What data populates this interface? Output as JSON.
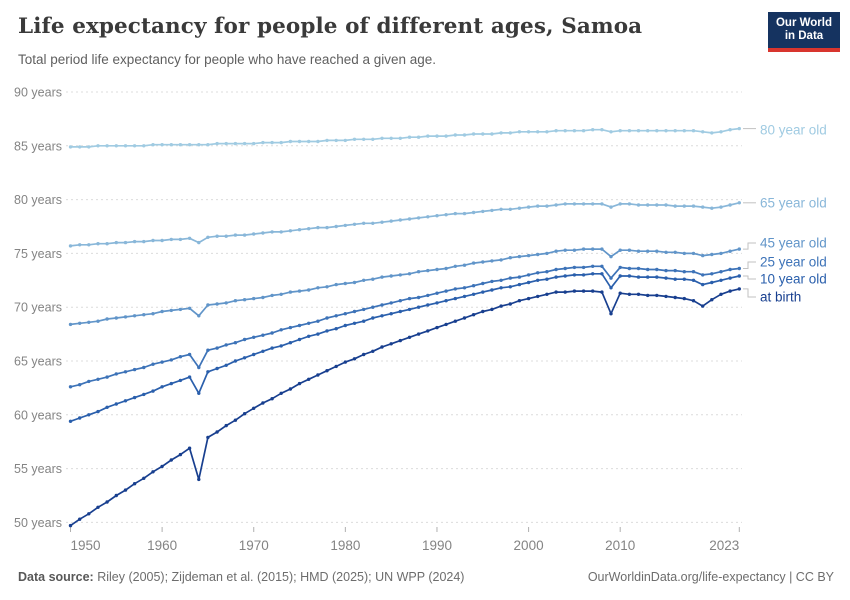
{
  "header": {
    "title": "Life expectancy for people of different ages, Samoa",
    "subtitle": "Total period life expectancy for people who have reached a given age.",
    "logo": {
      "line1": "Our World",
      "line2": "in Data",
      "bg": "#153360",
      "accent": "#d8352e"
    }
  },
  "footer": {
    "source_label": "Data source:",
    "source_text": " Riley (2005); Zijdeman et al. (2015); HMD (2025); UN WPP (2024)",
    "credit": "OurWorldinData.org/life-expectancy | CC BY"
  },
  "colors": {
    "grid": "#dcdcdc",
    "axis_text": "#848484",
    "tick": "#b0b0b0",
    "connector": "#c2c2c2",
    "title": "#3a3a3a",
    "subtitle": "#5f5f5f"
  },
  "chart_data": {
    "type": "line",
    "title": "Life expectancy for people of different ages, Samoa",
    "subtitle": "Total period life expectancy for people who have reached a given age.",
    "xlabel": "",
    "ylabel": "",
    "x": {
      "start": 1950,
      "end": 2023,
      "interval": 1
    },
    "xlim": [
      1950,
      2023
    ],
    "ylim": [
      50,
      90
    ],
    "grid": "horizontal-dashed",
    "legend_position": "right",
    "markers": "circle-every-year",
    "y_axis": {
      "ticks": [
        {
          "v": 50,
          "label": "50 years"
        },
        {
          "v": 55,
          "label": "55 years"
        },
        {
          "v": 60,
          "label": "60 years"
        },
        {
          "v": 65,
          "label": "65 years"
        },
        {
          "v": 70,
          "label": "70 years"
        },
        {
          "v": 75,
          "label": "75 years"
        },
        {
          "v": 80,
          "label": "80 years"
        },
        {
          "v": 85,
          "label": "85 years"
        },
        {
          "v": 90,
          "label": "90 years"
        }
      ]
    },
    "x_axis": {
      "ticks": [
        {
          "v": 1950,
          "label": "1950",
          "anchor": "start"
        },
        {
          "v": 1960,
          "label": "1960",
          "anchor": "middle"
        },
        {
          "v": 1970,
          "label": "1970",
          "anchor": "middle"
        },
        {
          "v": 1980,
          "label": "1980",
          "anchor": "middle"
        },
        {
          "v": 1990,
          "label": "1990",
          "anchor": "middle"
        },
        {
          "v": 2000,
          "label": "2000",
          "anchor": "middle"
        },
        {
          "v": 2010,
          "label": "2010",
          "anchor": "middle"
        },
        {
          "v": 2023,
          "label": "2023",
          "anchor": "end"
        }
      ]
    },
    "series": [
      {
        "id": "age-80",
        "name": "80 year old",
        "color": "#a0cbe2",
        "values": [
          84.9,
          84.9,
          84.9,
          85.0,
          85.0,
          85.0,
          85.0,
          85.0,
          85.0,
          85.1,
          85.1,
          85.1,
          85.1,
          85.1,
          85.1,
          85.1,
          85.2,
          85.2,
          85.2,
          85.2,
          85.2,
          85.3,
          85.3,
          85.3,
          85.4,
          85.4,
          85.4,
          85.4,
          85.5,
          85.5,
          85.5,
          85.6,
          85.6,
          85.6,
          85.7,
          85.7,
          85.7,
          85.8,
          85.8,
          85.9,
          85.9,
          85.9,
          86.0,
          86.0,
          86.1,
          86.1,
          86.1,
          86.2,
          86.2,
          86.3,
          86.3,
          86.3,
          86.3,
          86.4,
          86.4,
          86.4,
          86.4,
          86.5,
          86.5,
          86.3,
          86.4,
          86.4,
          86.4,
          86.4,
          86.4,
          86.4,
          86.4,
          86.4,
          86.4,
          86.3,
          86.2,
          86.3,
          86.5,
          86.6
        ]
      },
      {
        "id": "age-65",
        "name": "65 year old",
        "color": "#89b7d9",
        "values": [
          75.7,
          75.8,
          75.8,
          75.9,
          75.9,
          76.0,
          76.0,
          76.1,
          76.1,
          76.2,
          76.2,
          76.3,
          76.3,
          76.4,
          76.0,
          76.5,
          76.6,
          76.6,
          76.7,
          76.7,
          76.8,
          76.9,
          77.0,
          77.0,
          77.1,
          77.2,
          77.3,
          77.4,
          77.4,
          77.5,
          77.6,
          77.7,
          77.8,
          77.8,
          77.9,
          78.0,
          78.1,
          78.2,
          78.3,
          78.4,
          78.5,
          78.6,
          78.7,
          78.7,
          78.8,
          78.9,
          79.0,
          79.1,
          79.1,
          79.2,
          79.3,
          79.4,
          79.4,
          79.5,
          79.6,
          79.6,
          79.6,
          79.6,
          79.6,
          79.3,
          79.6,
          79.6,
          79.5,
          79.5,
          79.5,
          79.5,
          79.4,
          79.4,
          79.4,
          79.3,
          79.2,
          79.3,
          79.5,
          79.7
        ]
      },
      {
        "id": "age-45",
        "name": "45 year old",
        "color": "#6195c9",
        "values": [
          68.4,
          68.5,
          68.6,
          68.7,
          68.9,
          69.0,
          69.1,
          69.2,
          69.3,
          69.4,
          69.6,
          69.7,
          69.8,
          69.9,
          69.2,
          70.2,
          70.3,
          70.4,
          70.6,
          70.7,
          70.8,
          70.9,
          71.1,
          71.2,
          71.4,
          71.5,
          71.6,
          71.8,
          71.9,
          72.1,
          72.2,
          72.3,
          72.5,
          72.6,
          72.8,
          72.9,
          73.0,
          73.1,
          73.3,
          73.4,
          73.5,
          73.6,
          73.8,
          73.9,
          74.1,
          74.2,
          74.3,
          74.4,
          74.6,
          74.7,
          74.8,
          74.9,
          75.0,
          75.2,
          75.3,
          75.3,
          75.4,
          75.4,
          75.4,
          74.7,
          75.3,
          75.3,
          75.2,
          75.2,
          75.2,
          75.1,
          75.1,
          75.0,
          75.0,
          74.8,
          74.9,
          75.0,
          75.2,
          75.4
        ]
      },
      {
        "id": "age-25",
        "name": "25 year old",
        "color": "#3d73b8",
        "values": [
          62.6,
          62.8,
          63.1,
          63.3,
          63.5,
          63.8,
          64.0,
          64.2,
          64.4,
          64.7,
          64.9,
          65.1,
          65.4,
          65.6,
          64.4,
          66.0,
          66.2,
          66.5,
          66.7,
          67.0,
          67.2,
          67.4,
          67.6,
          67.9,
          68.1,
          68.3,
          68.5,
          68.7,
          69.0,
          69.2,
          69.4,
          69.6,
          69.8,
          70.0,
          70.2,
          70.4,
          70.6,
          70.8,
          70.9,
          71.1,
          71.3,
          71.5,
          71.7,
          71.8,
          72.0,
          72.2,
          72.4,
          72.5,
          72.7,
          72.8,
          73.0,
          73.2,
          73.3,
          73.5,
          73.6,
          73.7,
          73.7,
          73.8,
          73.8,
          72.7,
          73.7,
          73.6,
          73.6,
          73.5,
          73.5,
          73.4,
          73.4,
          73.3,
          73.3,
          73.0,
          73.1,
          73.3,
          73.5,
          73.6
        ]
      },
      {
        "id": "age-10",
        "name": "10 year old",
        "color": "#2a5fac",
        "values": [
          59.4,
          59.7,
          60.0,
          60.3,
          60.7,
          61.0,
          61.3,
          61.6,
          61.9,
          62.2,
          62.6,
          62.9,
          63.2,
          63.5,
          62.0,
          64.0,
          64.3,
          64.6,
          65.0,
          65.3,
          65.6,
          65.9,
          66.2,
          66.4,
          66.7,
          67.0,
          67.3,
          67.5,
          67.8,
          68.0,
          68.3,
          68.5,
          68.7,
          69.0,
          69.2,
          69.4,
          69.6,
          69.8,
          70.0,
          70.2,
          70.4,
          70.6,
          70.8,
          71.0,
          71.2,
          71.4,
          71.6,
          71.8,
          71.9,
          72.1,
          72.3,
          72.5,
          72.6,
          72.8,
          72.9,
          73.0,
          73.0,
          73.1,
          73.1,
          71.8,
          72.9,
          72.9,
          72.8,
          72.8,
          72.8,
          72.7,
          72.6,
          72.6,
          72.5,
          72.1,
          72.3,
          72.5,
          72.7,
          72.9
        ]
      },
      {
        "id": "at-birth",
        "name": "at birth",
        "color": "#183f8f",
        "values": [
          49.7,
          50.3,
          50.8,
          51.4,
          51.9,
          52.5,
          53.0,
          53.6,
          54.1,
          54.7,
          55.2,
          55.8,
          56.3,
          56.9,
          54.0,
          57.9,
          58.4,
          59.0,
          59.5,
          60.1,
          60.6,
          61.1,
          61.5,
          62.0,
          62.4,
          62.9,
          63.3,
          63.7,
          64.1,
          64.5,
          64.9,
          65.2,
          65.6,
          65.9,
          66.3,
          66.6,
          66.9,
          67.2,
          67.5,
          67.8,
          68.1,
          68.4,
          68.7,
          69.0,
          69.3,
          69.6,
          69.8,
          70.1,
          70.3,
          70.6,
          70.8,
          71.0,
          71.2,
          71.4,
          71.4,
          71.5,
          71.5,
          71.5,
          71.4,
          69.4,
          71.3,
          71.2,
          71.2,
          71.1,
          71.1,
          71.0,
          70.9,
          70.8,
          70.6,
          70.1,
          70.7,
          71.2,
          71.5,
          71.7
        ]
      }
    ]
  }
}
